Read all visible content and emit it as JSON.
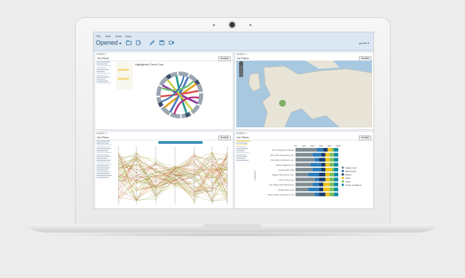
{
  "app": {
    "menu": [
      "File",
      "View",
      "Tools",
      "Help"
    ],
    "title": "Opened",
    "user": "gsmith"
  },
  "panels": [
    {
      "head": "SHEEP 1",
      "filter": "No Filters",
      "select": "Analytic",
      "chart_title": "Highlighted Chord Cols"
    },
    {
      "head": "SHEEP 2",
      "filter": "No Filters",
      "select": "Analytic"
    },
    {
      "head": "SHEEP 3",
      "filter": "No Filters",
      "select": "Analytic"
    },
    {
      "head": "SHEEP 4",
      "filter": "No Filters",
      "select": "Analytic"
    }
  ],
  "colors": {
    "accent": "#2d6fa3",
    "bar": "#dbe7f2"
  },
  "chart_data": [
    {
      "type": "bar",
      "stacked": true,
      "ylabel": "Customers",
      "categories": [
        "Euro Shopping Channel",
        "Mini Gifts Distributors Ltd.",
        "Australian Collectors, Co.",
        "Muscle Machine Inc",
        "La Rochelle Gifts",
        "Dragon Souveniers, Ltd.",
        "Land of Toys Inc.",
        "The Sharp Gifts Warehouse",
        "Handji Gifts & Co",
        "Down Under Souveniers, Inc"
      ],
      "xticks": [
        "0%",
        "20%",
        "40%",
        "60%",
        "80%",
        "100%"
      ],
      "series": [
        {
          "name": "Classic Cars",
          "color": "#7f8c93",
          "values": [
            50,
            40,
            45,
            35,
            40,
            30,
            45,
            40,
            30,
            45
          ]
        },
        {
          "name": "Motorcycles",
          "color": "#2b7bb9",
          "values": [
            15,
            20,
            10,
            25,
            20,
            25,
            10,
            15,
            25,
            10
          ]
        },
        {
          "name": "Planes",
          "color": "#1a3d6d",
          "values": [
            10,
            10,
            15,
            10,
            10,
            15,
            15,
            10,
            10,
            15
          ]
        },
        {
          "name": "Ships",
          "color": "#f0c21b",
          "values": [
            10,
            10,
            10,
            10,
            15,
            10,
            10,
            15,
            15,
            10
          ]
        },
        {
          "name": "Trains",
          "color": "#7bbf5a",
          "values": [
            5,
            10,
            10,
            10,
            5,
            10,
            10,
            10,
            10,
            10
          ]
        },
        {
          "name": "Trucks and Buses",
          "color": "#0e8ea6",
          "values": [
            10,
            10,
            10,
            10,
            10,
            10,
            10,
            10,
            10,
            10
          ]
        }
      ]
    }
  ]
}
